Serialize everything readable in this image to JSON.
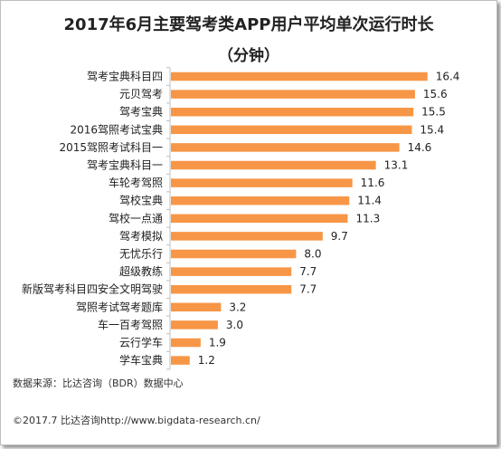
{
  "chart_data": {
    "type": "bar",
    "orientation": "horizontal",
    "title": "2017年6月主要驾考类APP用户平均单次运行时长",
    "unit": "（分钟）",
    "categories": [
      "驾考宝典科目四",
      "元贝驾考",
      "驾考宝典",
      "2016驾照考试宝典",
      "2015驾照考试科目一",
      "驾考宝典科目一",
      "车轮考驾照",
      "驾校宝典",
      "驾校一点通",
      "驾考模拟",
      "无忧乐行",
      "超级教练",
      "新版驾考科目四安全文明驾驶",
      "驾照考试驾考题库",
      "车一百考驾照",
      "云行学车",
      "学车宝典"
    ],
    "values": [
      16.4,
      15.6,
      15.5,
      15.4,
      14.6,
      13.1,
      11.6,
      11.4,
      11.3,
      9.7,
      8.0,
      7.7,
      7.7,
      3.2,
      3.0,
      1.9,
      1.2
    ],
    "value_labels": [
      "16.4",
      "15.6",
      "15.5",
      "15.4",
      "14.6",
      "13.1",
      "11.6",
      "11.4",
      "11.3",
      "9.7",
      "8.0",
      "7.7",
      "7.7",
      "3.2",
      "3.0",
      "1.9",
      "1.2"
    ],
    "xlim": [
      0,
      18
    ],
    "grid": false,
    "legend": "none",
    "bar_color": "#F79646",
    "axis_color": "#bfbfbf"
  },
  "footer": {
    "source": "数据来源：比达咨询（BDR）数据中心",
    "copyright": "©2017.7   比达咨询http://www.bigdata-research.cn/"
  }
}
